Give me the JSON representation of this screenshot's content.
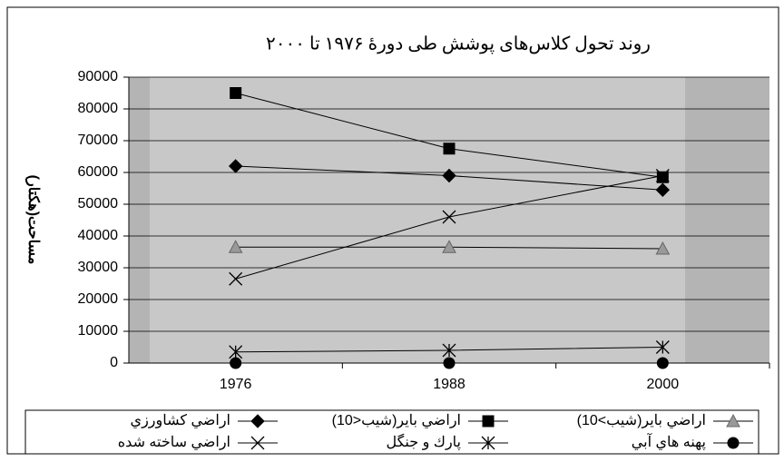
{
  "chart_data": {
    "type": "line",
    "title": "روند تحول کلاس‌های پوشش طی دورهٔ ۱۹۷۶ تا ۲۰۰۰",
    "y_label": "مساحت(هکتار)",
    "categories": [
      "1976",
      "1988",
      "2000"
    ],
    "ylim": [
      0,
      90000
    ],
    "yticks": [
      0,
      10000,
      20000,
      30000,
      40000,
      50000,
      60000,
      70000,
      80000,
      90000
    ],
    "grid": true,
    "legend": "bottom",
    "series": [
      {
        "name": "اراضي كشاورزي",
        "color": "#000000",
        "marker": "diamond",
        "values": [
          62000,
          59000,
          54500
        ]
      },
      {
        "name": "اراضي باير(شيب<10)",
        "color": "#000000",
        "marker": "square",
        "values": [
          85000,
          67500,
          58500
        ]
      },
      {
        "name": "اراضي باير(شيب>10)",
        "color": "#000000",
        "marker": "triangle",
        "values": [
          36500,
          36500,
          36000
        ]
      },
      {
        "name": "اراضي ساخته شده",
        "color": "#000000",
        "marker": "x",
        "values": [
          26500,
          46000,
          59000
        ]
      },
      {
        "name": "پارك و جنگل",
        "color": "#000000",
        "marker": "asterisk",
        "values": [
          3500,
          4000,
          5000
        ]
      },
      {
        "name": "پهنه هاي آبي",
        "color": "#000000",
        "marker": "circle",
        "values": [
          0,
          0,
          0
        ]
      }
    ]
  }
}
